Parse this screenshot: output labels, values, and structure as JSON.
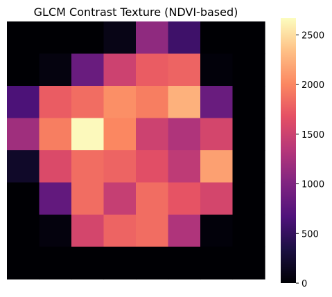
{
  "chart_data": {
    "type": "heatmap",
    "title": "GLCM Contrast Texture (NDVI-based)",
    "xlabel": "",
    "ylabel": "",
    "axes_visible": false,
    "colormap": "magma",
    "colorbar": {
      "range": [
        0,
        2670
      ],
      "ticks": [
        0,
        500,
        1000,
        1500,
        2000,
        2500
      ],
      "tick_labels": [
        "0",
        "500",
        "1000",
        "1500",
        "2000",
        "2500"
      ],
      "position": "right"
    },
    "rows": 8,
    "cols": 8,
    "values": [
      [
        0,
        0,
        0,
        100,
        1100,
        560,
        0,
        0
      ],
      [
        0,
        60,
        850,
        1500,
        1750,
        1800,
        30,
        0
      ],
      [
        650,
        1750,
        1850,
        2050,
        1950,
        2250,
        850,
        0
      ],
      [
        1200,
        1950,
        2650,
        2000,
        1500,
        1300,
        1550,
        0
      ],
      [
        200,
        1600,
        1850,
        1800,
        1650,
        1400,
        2150,
        0
      ],
      [
        0,
        800,
        1850,
        1450,
        1850,
        1700,
        1550,
        0
      ],
      [
        0,
        50,
        1550,
        1800,
        1850,
        1300,
        30,
        0
      ],
      [
        0,
        0,
        0,
        0,
        0,
        0,
        0,
        0
      ]
    ]
  }
}
